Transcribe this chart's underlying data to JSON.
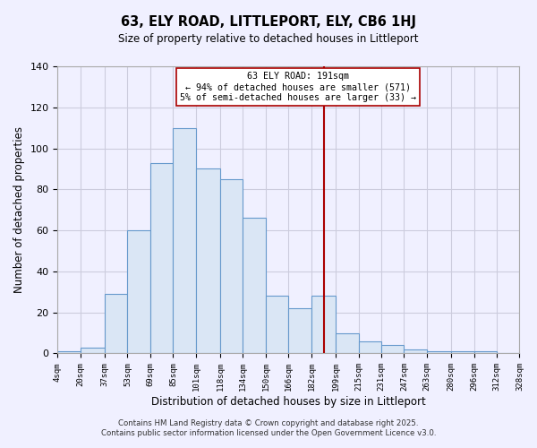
{
  "title": "63, ELY ROAD, LITTLEPORT, ELY, CB6 1HJ",
  "subtitle": "Size of property relative to detached houses in Littleport",
  "xlabel": "Distribution of detached houses by size in Littleport",
  "ylabel": "Number of detached properties",
  "bin_edges": [
    4,
    20,
    37,
    53,
    69,
    85,
    101,
    118,
    134,
    150,
    166,
    182,
    199,
    215,
    231,
    247,
    263,
    280,
    296,
    312,
    328
  ],
  "bar_heights": [
    1,
    3,
    29,
    60,
    93,
    110,
    90,
    85,
    66,
    28,
    22,
    28,
    10,
    6,
    4,
    2,
    1,
    1,
    1,
    0
  ],
  "bar_color": "#dae6f5",
  "bar_edge_color": "#6699cc",
  "vline_x": 191,
  "vline_color": "#aa0000",
  "xlim": [
    4,
    328
  ],
  "ylim": [
    0,
    140
  ],
  "xtick_labels": [
    "4sqm",
    "20sqm",
    "37sqm",
    "53sqm",
    "69sqm",
    "85sqm",
    "101sqm",
    "118sqm",
    "134sqm",
    "150sqm",
    "166sqm",
    "182sqm",
    "199sqm",
    "215sqm",
    "231sqm",
    "247sqm",
    "263sqm",
    "280sqm",
    "296sqm",
    "312sqm",
    "328sqm"
  ],
  "xtick_positions": [
    4,
    20,
    37,
    53,
    69,
    85,
    101,
    118,
    134,
    150,
    166,
    182,
    199,
    215,
    231,
    247,
    263,
    280,
    296,
    312,
    328
  ],
  "ytick_positions": [
    0,
    20,
    40,
    60,
    80,
    100,
    120,
    140
  ],
  "annotation_title": "63 ELY ROAD: 191sqm",
  "annotation_line1": "← 94% of detached houses are smaller (571)",
  "annotation_line2": "5% of semi-detached houses are larger (33) →",
  "grid_color": "#ccccdd",
  "background_color": "#f0f0ff",
  "footer_line1": "Contains HM Land Registry data © Crown copyright and database right 2025.",
  "footer_line2": "Contains public sector information licensed under the Open Government Licence v3.0."
}
